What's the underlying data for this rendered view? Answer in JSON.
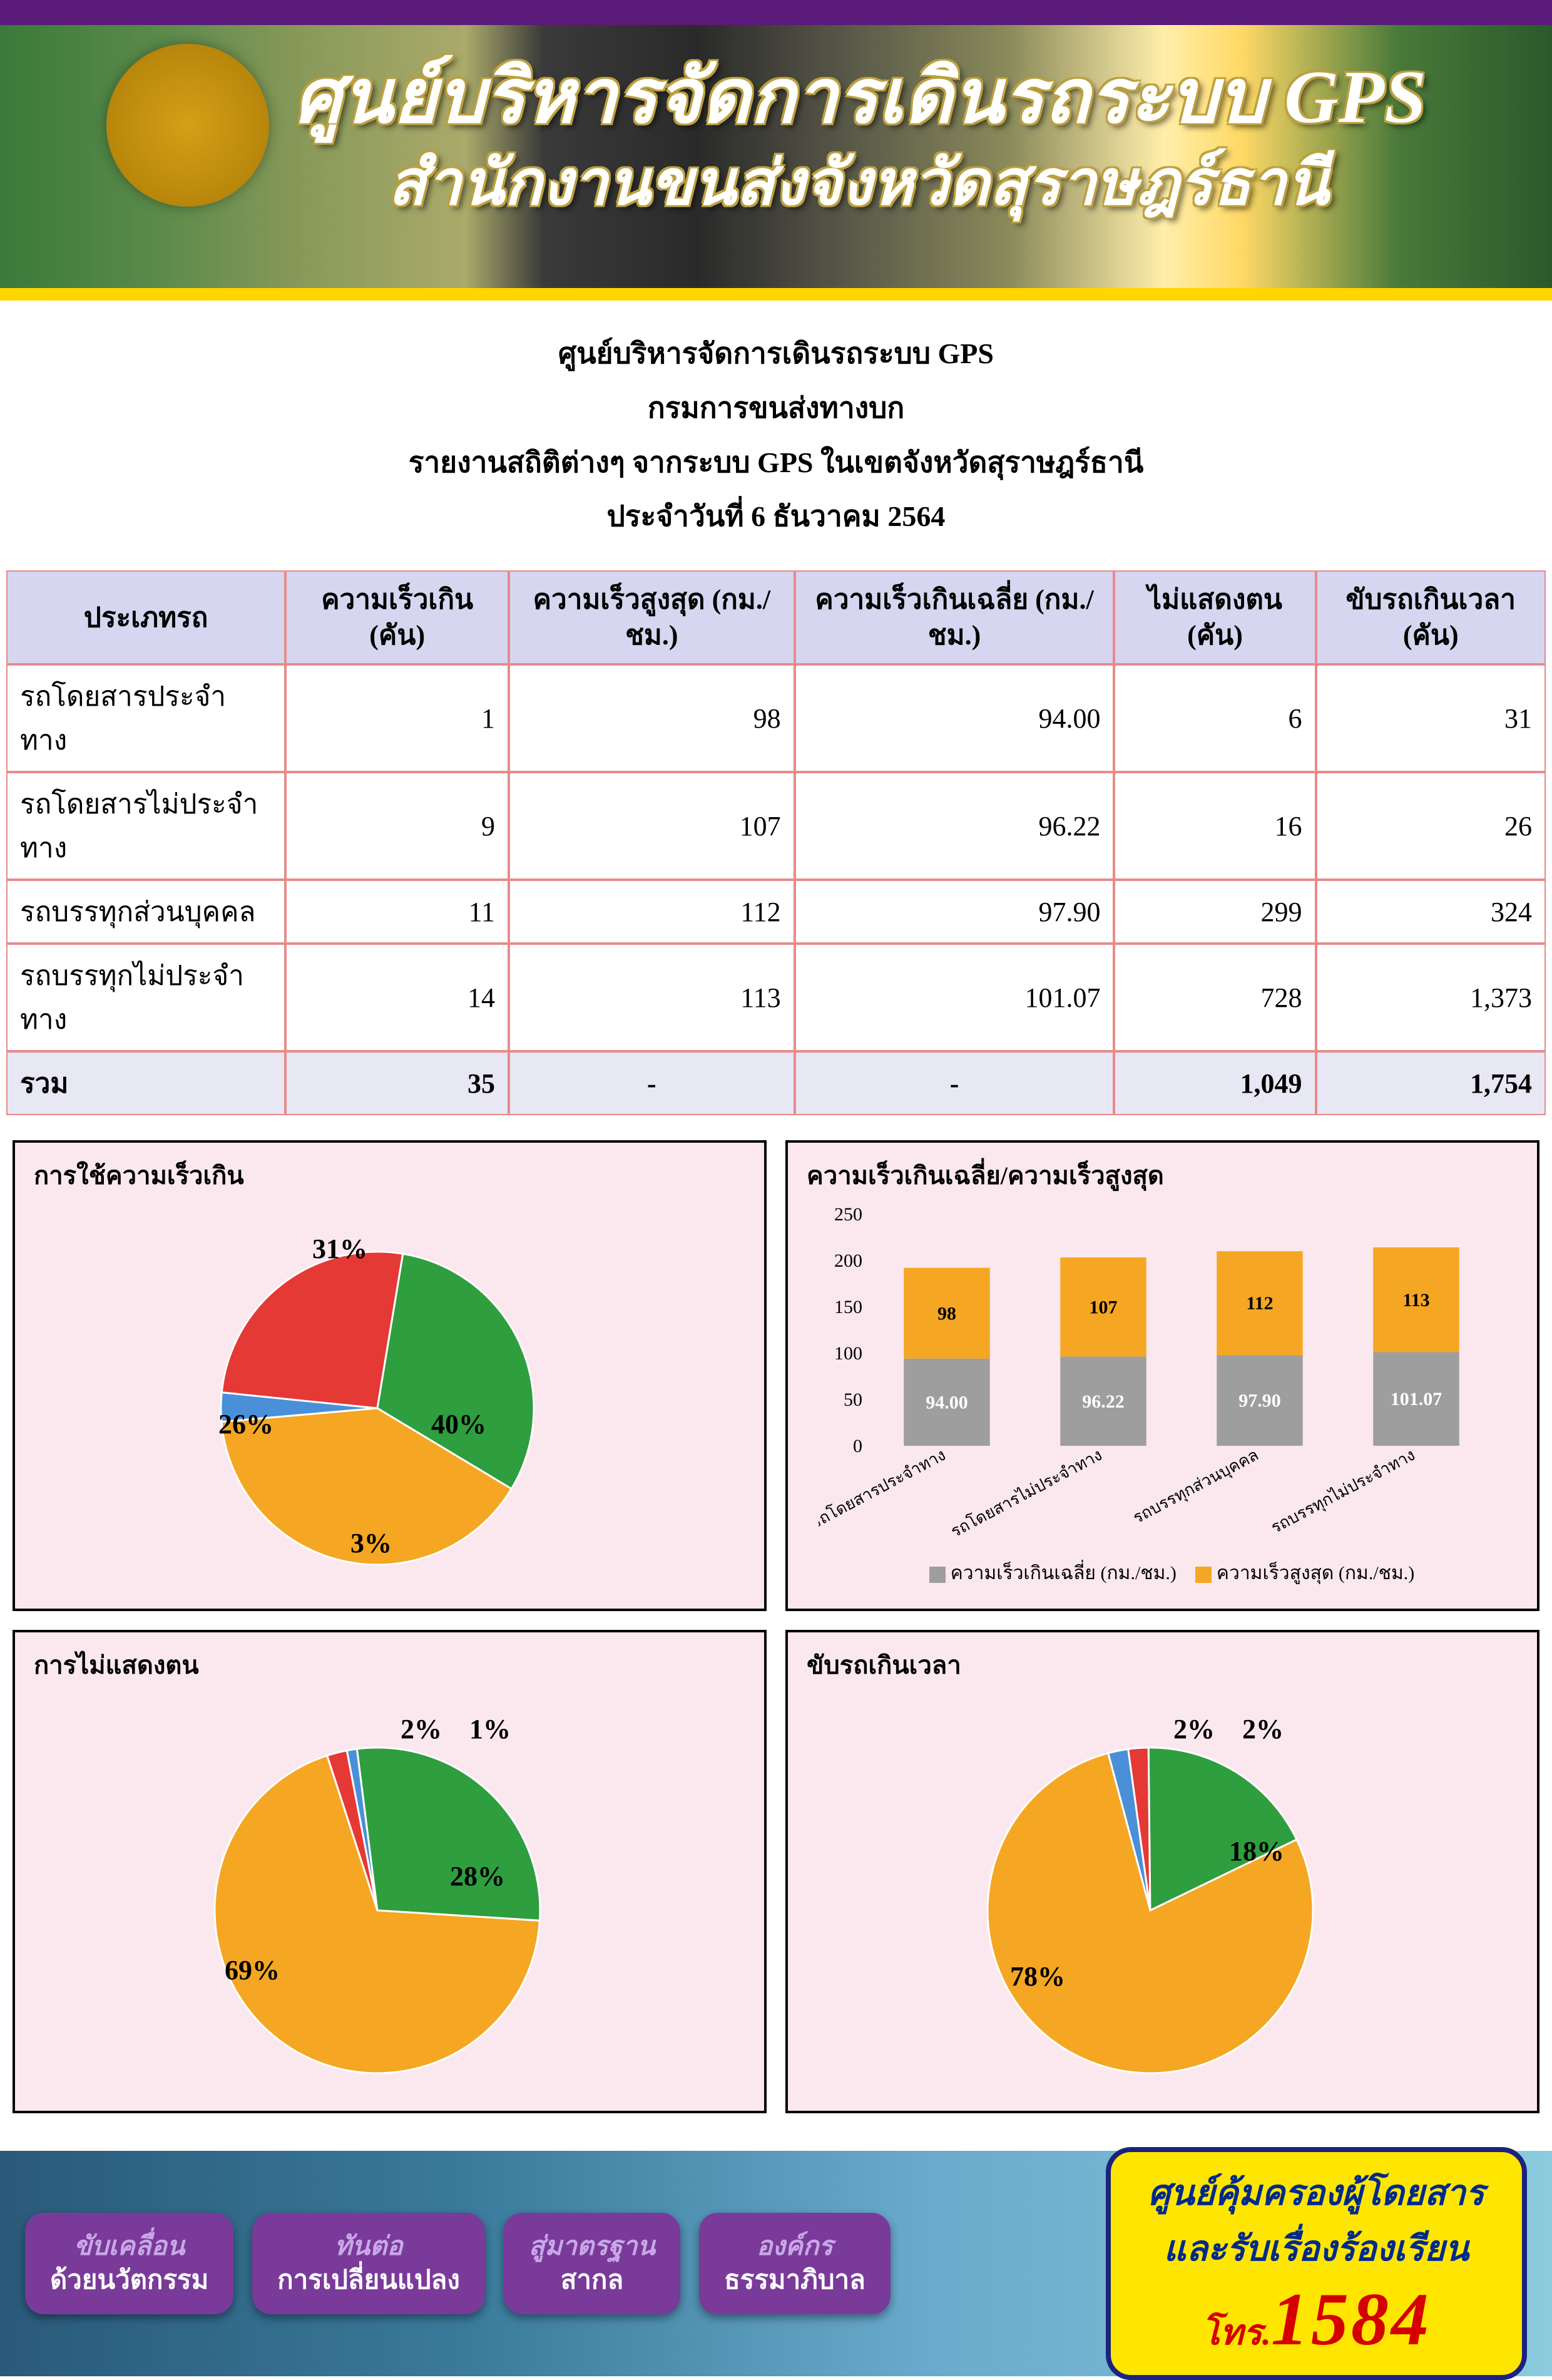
{
  "header": {
    "title": "ศูนย์บริหารจัดการเดินรถระบบ GPS",
    "subtitle": "สำนักงานขนส่งจังหวัดสุราษฎร์ธานี"
  },
  "info": {
    "l1": "ศูนย์บริหารจัดการเดินรถระบบ GPS",
    "l2": "กรมการขนส่งทางบก",
    "l3": "รายงานสถิติต่างๆ จากระบบ GPS ในเขตจังหวัดสุราษฎร์ธานี",
    "l4": "ประจำวันที่     6   ธันวาคม     2564"
  },
  "table": {
    "headers": [
      "ประเภทรถ",
      "ความเร็วเกิน (คัน)",
      "ความเร็วสูงสุด (กม./ชม.)",
      "ความเร็วเกินเฉลี่ย (กม./ชม.)",
      "ไม่แสดงตน (คัน)",
      "ขับรถเกินเวลา (คัน)"
    ],
    "rows": [
      [
        "รถโดยสารประจำทาง",
        "1",
        "98",
        "94.00",
        "6",
        "31"
      ],
      [
        "รถโดยสารไม่ประจำทาง",
        "9",
        "107",
        "96.22",
        "16",
        "26"
      ],
      [
        "รถบรรทุกส่วนบุคคล",
        "11",
        "112",
        "97.90",
        "299",
        "324"
      ],
      [
        "รถบรรทุกไม่ประจำทาง",
        "14",
        "113",
        "101.07",
        "728",
        "1,373"
      ]
    ],
    "total": [
      "รวม",
      "35",
      "-",
      "-",
      "1,049",
      "1,754"
    ]
  },
  "colors": {
    "border": "#e88a8a",
    "th_bg": "#d6d6f0",
    "chart_bg": "#fbe8ef",
    "series": {
      "blue": "#4a90d9",
      "red": "#e53935",
      "green": "#2e9e3f",
      "orange": "#f5a623",
      "grey": "#9e9e9e"
    }
  },
  "pie_speed": {
    "title": "การใช้ความเร็วเกิน",
    "slices": [
      {
        "label": "3%",
        "value": 3,
        "color": "#4a90d9",
        "lx": 420,
        "ly": 560
      },
      {
        "label": "26%",
        "value": 26,
        "color": "#e53935",
        "lx": 220,
        "ly": 370
      },
      {
        "label": "31%",
        "value": 31,
        "color": "#2e9e3f",
        "lx": 370,
        "ly": 90
      },
      {
        "label": "40%",
        "value": 40,
        "color": "#f5a623",
        "lx": 560,
        "ly": 370
      }
    ]
  },
  "pie_noshow": {
    "title": "การไม่แสดงตน",
    "slices": [
      {
        "label": "2%",
        "value": 2,
        "color": "#e53935",
        "lx": 500,
        "ly": 75
      },
      {
        "label": "1%",
        "value": 1,
        "color": "#4a90d9",
        "lx": 610,
        "ly": 75
      },
      {
        "label": "28%",
        "value": 28,
        "color": "#2e9e3f",
        "lx": 590,
        "ly": 310
      },
      {
        "label": "69%",
        "value": 69,
        "color": "#f5a623",
        "lx": 230,
        "ly": 460
      }
    ]
  },
  "pie_overtime": {
    "title": "ขับรถเกินเวลา",
    "slices": [
      {
        "label": "2%",
        "value": 2,
        "color": "#4a90d9",
        "lx": 500,
        "ly": 75
      },
      {
        "label": "2%",
        "value": 2,
        "color": "#e53935",
        "lx": 610,
        "ly": 75
      },
      {
        "label": "18%",
        "value": 18,
        "color": "#2e9e3f",
        "lx": 600,
        "ly": 270
      },
      {
        "label": "78%",
        "value": 78,
        "color": "#f5a623",
        "lx": 250,
        "ly": 470
      }
    ]
  },
  "bar_speed": {
    "title": "ความเร็วเกินเฉลี่ย/ความเร็วสูงสุด",
    "categories": [
      "รถโดยสารประจำทาง",
      "รถโดยสารไม่ประจำทาง",
      "รถบรรทุกส่วนบุคคล",
      "รถบรรทุกไม่ประจำทาง"
    ],
    "series": [
      {
        "name": "ความเร็วเกินเฉลี่ย (กม./ชม.)",
        "color": "#9e9e9e",
        "values": [
          94.0,
          96.22,
          97.9,
          101.07
        ],
        "labels": [
          "94.00",
          "96.22",
          "97.90",
          "101.07"
        ]
      },
      {
        "name": "ความเร็วสูงสุด (กม./ชม.)",
        "color": "#f5a623",
        "values": [
          98,
          107,
          112,
          113
        ],
        "labels": [
          "98",
          "107",
          "112",
          "113"
        ]
      }
    ],
    "ymax": 250,
    "ystep": 50
  },
  "footer": {
    "bubbles": [
      {
        "top": "ขับเคลื่อน",
        "bottom": "ด้วยนวัตกรรม"
      },
      {
        "top": "ทันต่อ",
        "bottom": "การเปลี่ยนแปลง"
      },
      {
        "top": "สู่มาตรฐาน",
        "bottom": "สากล"
      },
      {
        "top": "องค์กร",
        "bottom": "ธรรมาภิบาล"
      }
    ],
    "cta": {
      "l1": "ศูนย์คุ้มครองผู้โดยสาร",
      "l2": "และรับเรื่องร้องเรียน",
      "l3_prefix": "โทร.",
      "l3_num": "1584"
    }
  }
}
